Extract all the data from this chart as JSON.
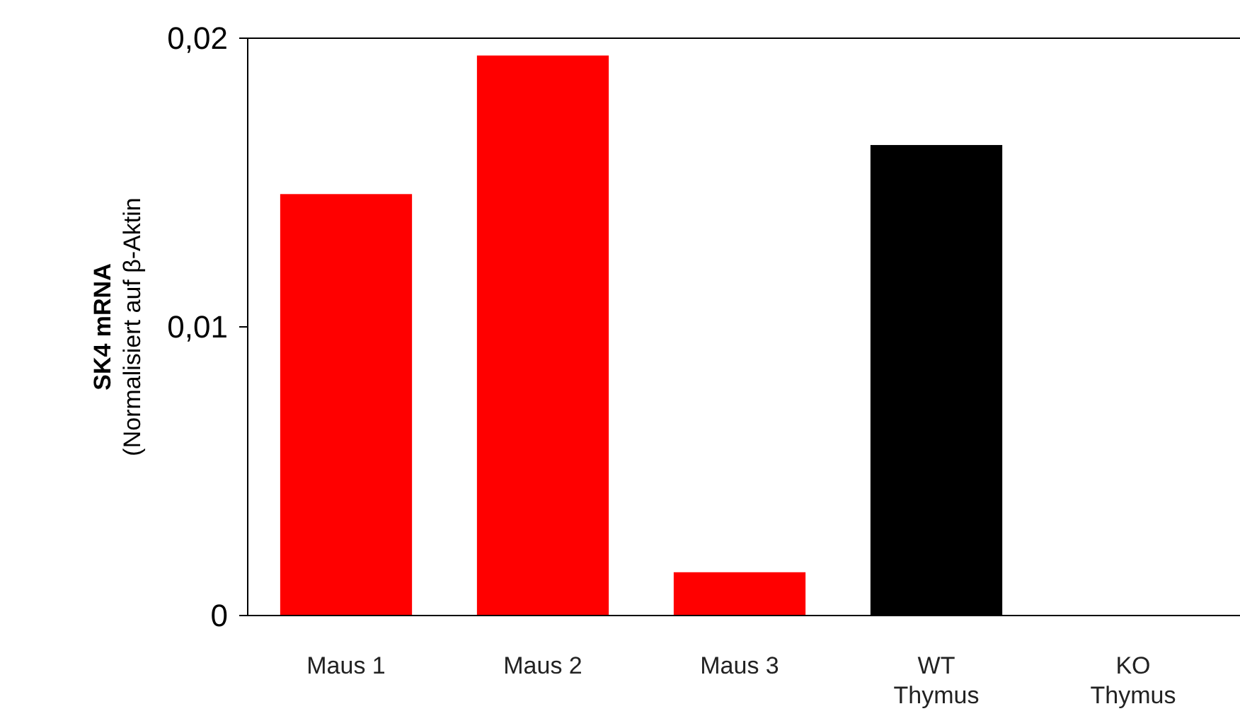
{
  "chart_data": {
    "type": "bar",
    "ylabel": "SK4 mRNA\n(Normalisiert auf β-Aktin",
    "categories": [
      "Maus 1",
      "Maus 2",
      "Maus 3",
      "WT\nThymus",
      "KO\nThymus"
    ],
    "values": [
      0.0146,
      0.0194,
      0.0015,
      0.0163,
      0
    ],
    "colors": [
      "#ff0000",
      "#ff0000",
      "#ff0000",
      "#000000",
      "#000000"
    ],
    "ylim": [
      0,
      0.02
    ],
    "yticks": [
      {
        "value": 0,
        "label": "0"
      },
      {
        "value": 0.01,
        "label": "0,01"
      },
      {
        "value": 0.02,
        "label": "0,02"
      }
    ],
    "grid": false
  }
}
